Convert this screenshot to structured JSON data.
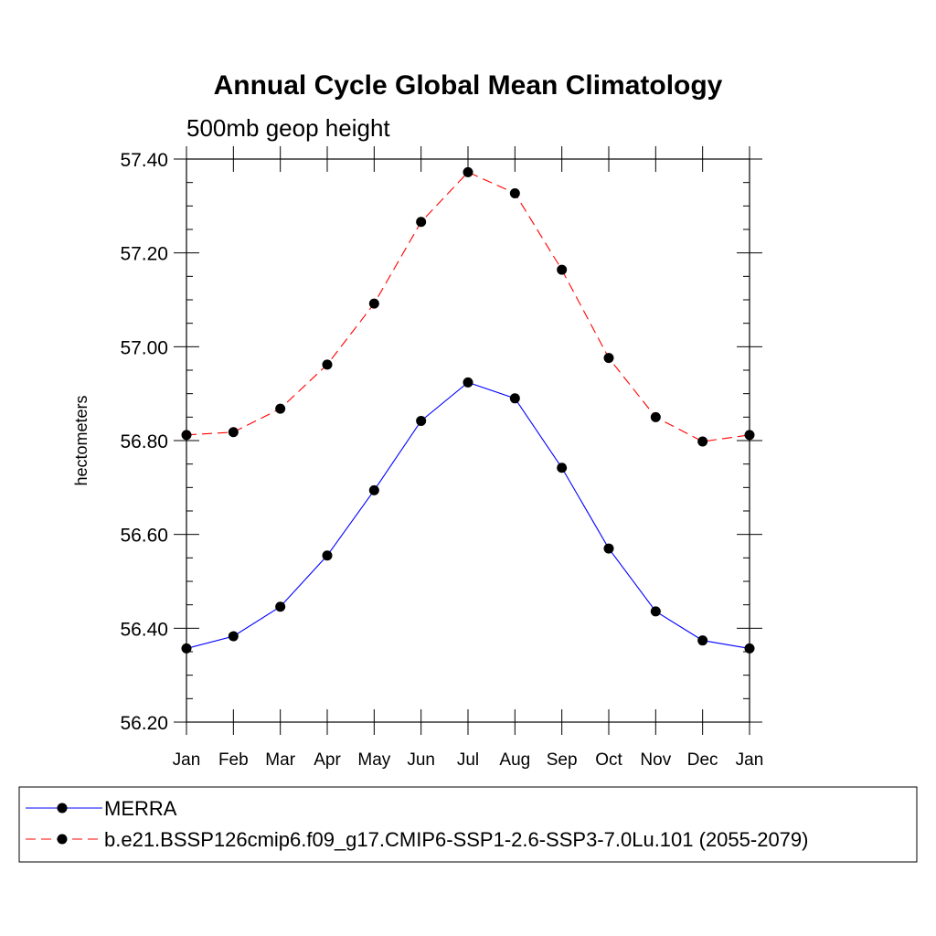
{
  "chart_data": {
    "type": "line",
    "title": "Annual Cycle Global Mean Climatology",
    "subtitle": "500mb geop height",
    "ylabel": "hectometers",
    "xlabel": "",
    "categories": [
      "Jan",
      "Feb",
      "Mar",
      "Apr",
      "May",
      "Jun",
      "Jul",
      "Aug",
      "Sep",
      "Oct",
      "Nov",
      "Dec",
      "Jan"
    ],
    "ylim": [
      56.2,
      57.4
    ],
    "yticks": [
      "56.20",
      "56.40",
      "56.60",
      "56.80",
      "57.00",
      "57.20",
      "57.40"
    ],
    "grid": false,
    "legend_position": "bottom",
    "series": [
      {
        "name": "MERRA",
        "color": "#0000ff",
        "line_style": "solid",
        "marker": "filled-circle",
        "values": [
          56.357,
          56.383,
          56.446,
          56.555,
          56.694,
          56.842,
          56.924,
          56.89,
          56.742,
          56.57,
          56.436,
          56.374,
          56.357
        ]
      },
      {
        "name": "b.e21.BSSP126cmip6.f09_g17.CMIP6-SSP1-2.6-SSP3-7.0Lu.101 (2055-2079)",
        "color": "#ff0000",
        "line_style": "dashed",
        "marker": "filled-circle",
        "values": [
          56.812,
          56.818,
          56.868,
          56.962,
          57.092,
          57.266,
          57.372,
          57.327,
          57.164,
          56.976,
          56.85,
          56.798,
          56.812
        ]
      }
    ]
  }
}
